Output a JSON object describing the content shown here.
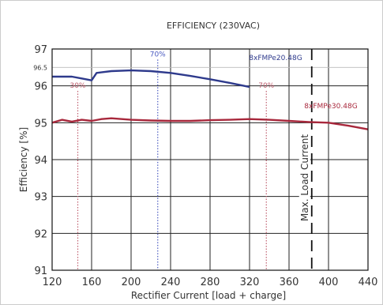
{
  "chart_data": {
    "type": "line",
    "title": "EFFICIENCY (230VAC)",
    "xlabel": "Rectifier Current [load + charge]",
    "ylabel": "Efficiency [%]",
    "xlim": [
      120,
      440
    ],
    "ylim": [
      91,
      97
    ],
    "x_ticks": [
      "120",
      "160",
      "200",
      "240",
      "280",
      "320",
      "360",
      "400",
      "440"
    ],
    "y_ticks": [
      "91",
      "92",
      "93",
      "94",
      "95",
      "96",
      "97"
    ],
    "extra_y_tick": {
      "value": 96.5,
      "label": "96.5"
    },
    "grid": true,
    "series": [
      {
        "name": "8xFMPe20.48G",
        "color": "#2e3a8c",
        "x": [
          120,
          140,
          150,
          160,
          165,
          180,
          200,
          220,
          240,
          260,
          280,
          300,
          320
        ],
        "y": [
          96.25,
          96.25,
          96.2,
          96.15,
          96.35,
          96.4,
          96.42,
          96.4,
          96.35,
          96.27,
          96.18,
          96.08,
          95.97
        ]
      },
      {
        "name": "8xFMPe30.48G",
        "color": "#a8283c",
        "x": [
          120,
          130,
          140,
          150,
          160,
          170,
          180,
          200,
          220,
          240,
          260,
          280,
          300,
          320,
          340,
          360,
          380,
          400,
          420,
          440
        ],
        "y": [
          95.0,
          95.08,
          95.03,
          95.08,
          95.05,
          95.1,
          95.12,
          95.08,
          95.06,
          95.05,
          95.05,
          95.07,
          95.08,
          95.1,
          95.08,
          95.05,
          95.02,
          95.0,
          94.92,
          94.82
        ]
      }
    ],
    "annotations": [
      {
        "label": "70%",
        "x": 227,
        "color": "#4a5ac0",
        "line": "dotted"
      },
      {
        "label": "30%",
        "x": 146,
        "color": "#c06070",
        "line": "dotted"
      },
      {
        "label": "70%",
        "x": 337,
        "color": "#c06070",
        "line": "dotted"
      }
    ],
    "max_load": {
      "label": "Max. Load Current",
      "x": 383
    }
  }
}
